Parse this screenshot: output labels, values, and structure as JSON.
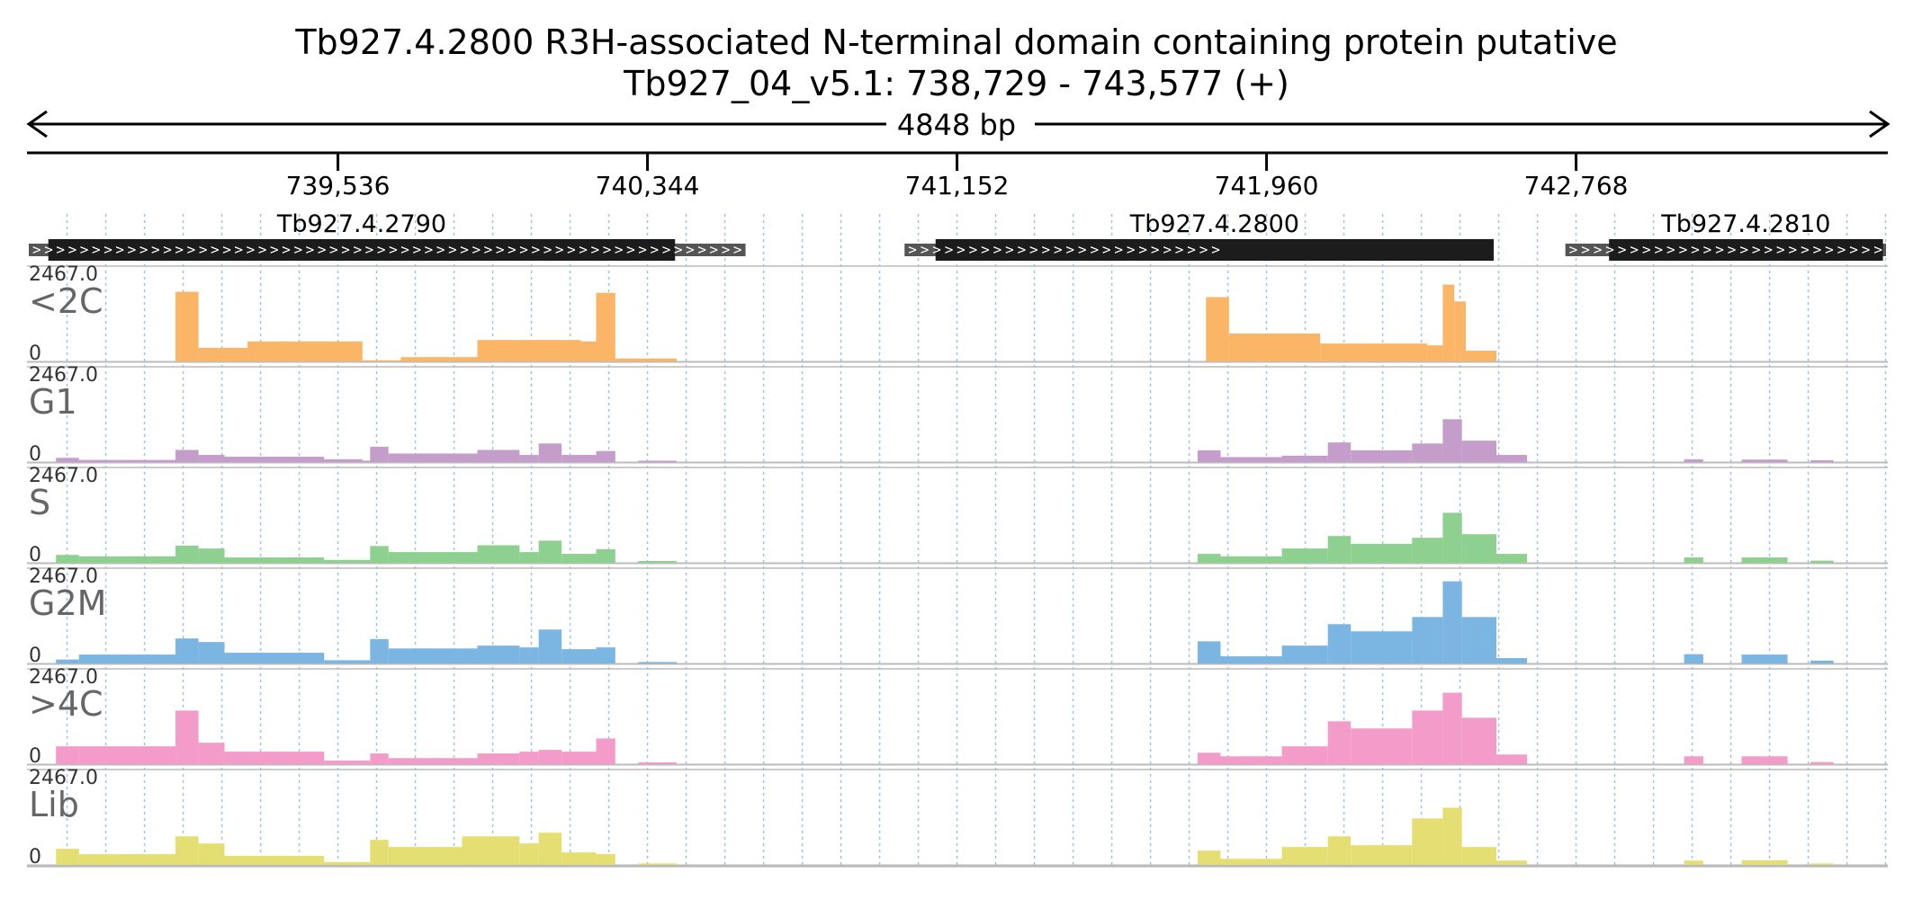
{
  "title": "Tb927.4.2800  R3H-associated N-terminal domain containing protein  putative",
  "subtitle": "Tb927_04_v5.1: 738,729 - 743,577 (+)",
  "span_label": "4848 bp",
  "chart_data": {
    "type": "area",
    "region": {
      "chromosome": "Tb927_04_v5.1",
      "start": 738729,
      "end": 743577,
      "strand": "+"
    },
    "ruler_ticks": [
      {
        "pos": 739536,
        "label": "739,536"
      },
      {
        "pos": 740344,
        "label": "740,344"
      },
      {
        "pos": 741152,
        "label": "741,152"
      },
      {
        "pos": 741960,
        "label": "741,960"
      },
      {
        "pos": 742768,
        "label": "742,768"
      }
    ],
    "genes": [
      {
        "name": "Tb927.4.2790",
        "start": 738729,
        "end": 740600,
        "cds_start": 738780,
        "cds_end": 740416
      },
      {
        "name": "Tb927.4.2800",
        "start": 741015,
        "end": 741848,
        "cds_start": 741096,
        "cds_end": 742553
      },
      {
        "name": "Tb927.4.2810",
        "start": 742740,
        "end": 743577,
        "cds_start": 742854,
        "cds_end": 743569
      }
    ],
    "ylim": [
      0,
      2467.0
    ],
    "y_max_label": "2467.0",
    "y_min_label": "0",
    "tracks": [
      {
        "name": "<2C",
        "color": "#fbb567",
        "bins": [
          [
            739112,
            739172,
            1950
          ],
          [
            739172,
            739300,
            380
          ],
          [
            739300,
            739600,
            560
          ],
          [
            739600,
            739700,
            30
          ],
          [
            739700,
            739900,
            120
          ],
          [
            739900,
            740170,
            600
          ],
          [
            740170,
            740210,
            560
          ],
          [
            740210,
            740260,
            1920
          ],
          [
            740260,
            740420,
            80
          ],
          [
            741802,
            741862,
            1800
          ],
          [
            741862,
            742100,
            780
          ],
          [
            742100,
            742380,
            500
          ],
          [
            742380,
            742420,
            450
          ],
          [
            742420,
            742450,
            2150
          ],
          [
            742450,
            742480,
            1680
          ],
          [
            742480,
            742560,
            300
          ]
        ]
      },
      {
        "name": "G1",
        "color": "#c59dca",
        "bins": [
          [
            738800,
            738860,
            120
          ],
          [
            738860,
            739112,
            60
          ],
          [
            739112,
            739172,
            340
          ],
          [
            739172,
            739240,
            200
          ],
          [
            739240,
            739500,
            150
          ],
          [
            739500,
            739600,
            80
          ],
          [
            739600,
            739620,
            40
          ],
          [
            739620,
            739668,
            430
          ],
          [
            739668,
            739900,
            240
          ],
          [
            739900,
            740010,
            340
          ],
          [
            740010,
            740060,
            200
          ],
          [
            740060,
            740120,
            520
          ],
          [
            740120,
            740210,
            200
          ],
          [
            740210,
            740260,
            310
          ],
          [
            740320,
            740420,
            40
          ],
          [
            741780,
            741840,
            330
          ],
          [
            741840,
            742000,
            140
          ],
          [
            742000,
            742120,
            180
          ],
          [
            742120,
            742180,
            550
          ],
          [
            742180,
            742340,
            330
          ],
          [
            742340,
            742420,
            520
          ],
          [
            742420,
            742470,
            1200
          ],
          [
            742470,
            742560,
            600
          ],
          [
            742560,
            742640,
            200
          ],
          [
            743050,
            743100,
            80
          ],
          [
            743200,
            743320,
            70
          ],
          [
            743380,
            743440,
            50
          ]
        ]
      },
      {
        "name": "S",
        "color": "#8ed08f",
        "bins": [
          [
            738800,
            738860,
            220
          ],
          [
            738860,
            739112,
            180
          ],
          [
            739112,
            739172,
            480
          ],
          [
            739172,
            739240,
            400
          ],
          [
            739240,
            739500,
            150
          ],
          [
            739500,
            739620,
            80
          ],
          [
            739620,
            739668,
            470
          ],
          [
            739668,
            739900,
            300
          ],
          [
            739900,
            740010,
            490
          ],
          [
            740010,
            740060,
            300
          ],
          [
            740060,
            740120,
            620
          ],
          [
            740120,
            740210,
            250
          ],
          [
            740210,
            740260,
            380
          ],
          [
            740320,
            740420,
            50
          ],
          [
            741780,
            741840,
            250
          ],
          [
            741840,
            742000,
            180
          ],
          [
            742000,
            742120,
            400
          ],
          [
            742120,
            742180,
            750
          ],
          [
            742180,
            742340,
            530
          ],
          [
            742340,
            742420,
            700
          ],
          [
            742420,
            742470,
            1400
          ],
          [
            742470,
            742560,
            800
          ],
          [
            742560,
            742640,
            250
          ],
          [
            743050,
            743100,
            150
          ],
          [
            743200,
            743320,
            150
          ],
          [
            743380,
            743440,
            60
          ]
        ]
      },
      {
        "name": "G2M",
        "color": "#7bb5e2",
        "bins": [
          [
            738800,
            738860,
            110
          ],
          [
            738860,
            739112,
            250
          ],
          [
            739112,
            739172,
            700
          ],
          [
            739172,
            739240,
            600
          ],
          [
            739240,
            739500,
            300
          ],
          [
            739500,
            739620,
            90
          ],
          [
            739620,
            739668,
            680
          ],
          [
            739668,
            739900,
            420
          ],
          [
            739900,
            740010,
            500
          ],
          [
            740010,
            740060,
            450
          ],
          [
            740060,
            740120,
            950
          ],
          [
            740120,
            740210,
            400
          ],
          [
            740210,
            740260,
            450
          ],
          [
            740320,
            740420,
            40
          ],
          [
            741780,
            741840,
            620
          ],
          [
            741840,
            742000,
            200
          ],
          [
            742000,
            742120,
            500
          ],
          [
            742120,
            742180,
            1100
          ],
          [
            742180,
            742340,
            900
          ],
          [
            742340,
            742420,
            1300
          ],
          [
            742420,
            742470,
            2300
          ],
          [
            742470,
            742560,
            1300
          ],
          [
            742560,
            742640,
            150
          ],
          [
            743050,
            743100,
            260
          ],
          [
            743200,
            743320,
            250
          ],
          [
            743380,
            743440,
            80
          ]
        ]
      },
      {
        "name": ">4C",
        "color": "#f49cc9",
        "bins": [
          [
            738800,
            738860,
            500
          ],
          [
            738860,
            739112,
            500
          ],
          [
            739112,
            739172,
            1500
          ],
          [
            739172,
            739240,
            600
          ],
          [
            739240,
            739500,
            350
          ],
          [
            739500,
            739620,
            100
          ],
          [
            739620,
            739668,
            300
          ],
          [
            739668,
            739900,
            170
          ],
          [
            739900,
            740010,
            300
          ],
          [
            740010,
            740060,
            350
          ],
          [
            740060,
            740120,
            400
          ],
          [
            740120,
            740210,
            350
          ],
          [
            740210,
            740260,
            720
          ],
          [
            740320,
            740420,
            50
          ],
          [
            741780,
            741840,
            320
          ],
          [
            741840,
            742000,
            220
          ],
          [
            742000,
            742120,
            500
          ],
          [
            742120,
            742180,
            1200
          ],
          [
            742180,
            742340,
            1000
          ],
          [
            742340,
            742420,
            1500
          ],
          [
            742420,
            742470,
            2000
          ],
          [
            742470,
            742560,
            1300
          ],
          [
            742560,
            742640,
            270
          ],
          [
            743050,
            743100,
            220
          ],
          [
            743200,
            743320,
            220
          ],
          [
            743380,
            743440,
            60
          ]
        ]
      },
      {
        "name": "Lib",
        "color": "#e5df73",
        "bins": [
          [
            738800,
            738860,
            450
          ],
          [
            738860,
            739112,
            300
          ],
          [
            739112,
            739172,
            800
          ],
          [
            739172,
            739240,
            600
          ],
          [
            739240,
            739500,
            250
          ],
          [
            739500,
            739620,
            80
          ],
          [
            739620,
            739668,
            700
          ],
          [
            739668,
            739860,
            500
          ],
          [
            739860,
            740010,
            800
          ],
          [
            740010,
            740060,
            600
          ],
          [
            740060,
            740120,
            900
          ],
          [
            740120,
            740210,
            350
          ],
          [
            740210,
            740260,
            300
          ],
          [
            740320,
            740420,
            40
          ],
          [
            741780,
            741840,
            400
          ],
          [
            741840,
            742000,
            170
          ],
          [
            742000,
            742120,
            500
          ],
          [
            742120,
            742180,
            800
          ],
          [
            742180,
            742340,
            550
          ],
          [
            742340,
            742420,
            1300
          ],
          [
            742420,
            742470,
            1600
          ],
          [
            742470,
            742560,
            500
          ],
          [
            742560,
            742640,
            120
          ],
          [
            743050,
            743100,
            120
          ],
          [
            743200,
            743320,
            130
          ],
          [
            743380,
            743440,
            40
          ]
        ]
      }
    ]
  }
}
